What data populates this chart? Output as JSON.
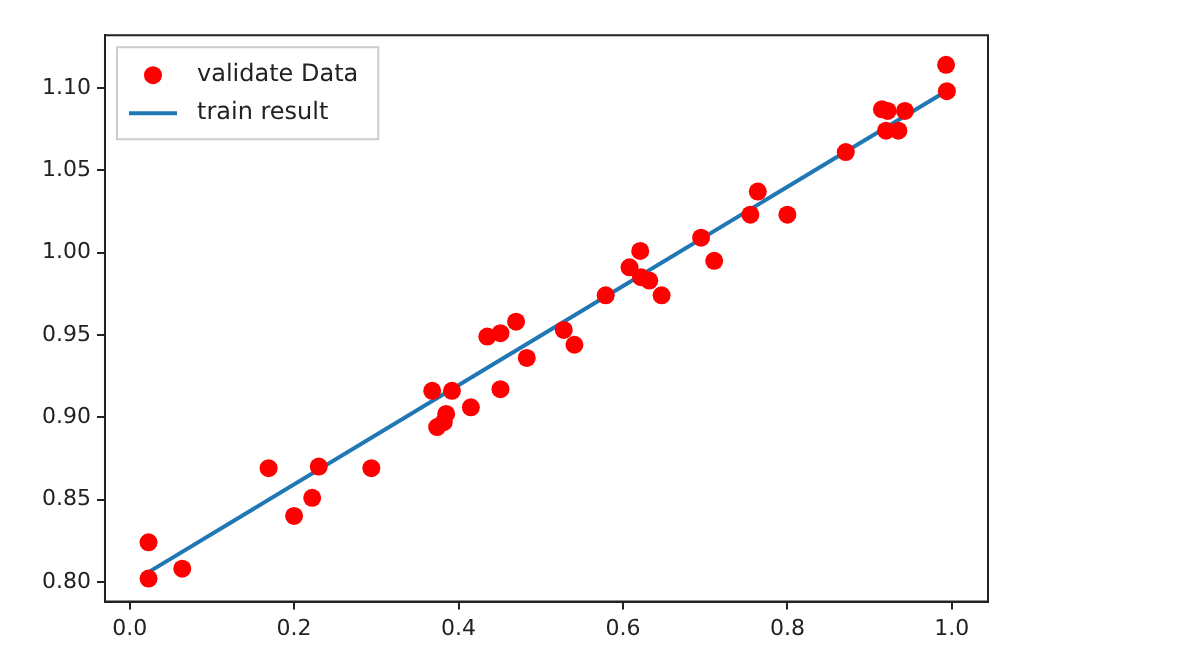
{
  "chart_data": {
    "type": "scatter",
    "legend": "top left",
    "grid": false,
    "xlim": [
      -0.03,
      1.044
    ],
    "ylim": [
      0.788,
      1.132
    ],
    "xticks": [
      {
        "value": 0,
        "label": "0.0"
      },
      {
        "value": 0.2,
        "label": "0.2"
      },
      {
        "value": 0.4,
        "label": "0.4"
      },
      {
        "value": 0.6,
        "label": "0.6"
      },
      {
        "value": 0.8,
        "label": "0.8"
      },
      {
        "value": 1,
        "label": "1.0"
      }
    ],
    "yticks": [
      {
        "value": 0.8,
        "label": "0.80"
      },
      {
        "value": 0.85,
        "label": "0.85"
      },
      {
        "value": 0.9,
        "label": "0.90"
      },
      {
        "value": 0.95,
        "label": "0.95"
      },
      {
        "value": 1,
        "label": "1.00"
      },
      {
        "value": 1.05,
        "label": "1.05"
      },
      {
        "value": 1.1,
        "label": "1.10"
      }
    ],
    "series": [
      {
        "name": "validate Data",
        "type": "scatter",
        "marker": "circle",
        "color": "#ff0000",
        "x": [
          0.023,
          0.023,
          0.064,
          0.169,
          0.2,
          0.222,
          0.23,
          0.294,
          0.368,
          0.374,
          0.382,
          0.385,
          0.392,
          0.415,
          0.435,
          0.451,
          0.451,
          0.47,
          0.483,
          0.528,
          0.541,
          0.579,
          0.608,
          0.621,
          0.622,
          0.632,
          0.647,
          0.695,
          0.711,
          0.755,
          0.764,
          0.8,
          0.871,
          0.915,
          0.922,
          0.92,
          0.935,
          0.943,
          0.993,
          0.994
        ],
        "values": [
          0.824,
          0.802,
          0.808,
          0.869,
          0.84,
          0.851,
          0.87,
          0.869,
          0.916,
          0.894,
          0.897,
          0.902,
          0.916,
          0.906,
          0.949,
          0.951,
          0.917,
          0.958,
          0.936,
          0.953,
          0.944,
          0.974,
          0.991,
          1.001,
          0.985,
          0.983,
          0.974,
          1.009,
          0.995,
          1.023,
          1.037,
          1.023,
          1.061,
          1.087,
          1.086,
          1.074,
          1.074,
          1.086,
          1.114,
          1.098
        ]
      },
      {
        "name": "train result",
        "type": "line",
        "marker": "none",
        "line_style": "solid",
        "color": "#1f77b4",
        "x": [
          0.02,
          0.993
        ],
        "values": [
          0.805,
          1.098
        ]
      }
    ]
  }
}
